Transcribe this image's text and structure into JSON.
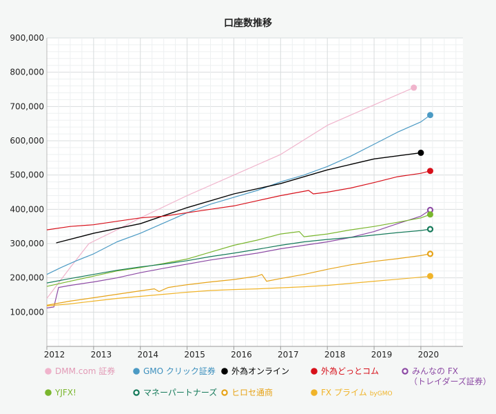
{
  "chart_data": {
    "type": "line",
    "title": "口座数推移",
    "xlabel": "",
    "ylabel": "",
    "xlim": [
      2012,
      2020.9
    ],
    "ylim": [
      0,
      900000
    ],
    "x_ticks": [
      2012,
      2013,
      2014,
      2015,
      2016,
      2017,
      2018,
      2019,
      2020
    ],
    "x_tick_labels": [
      "2012",
      "2013",
      "2014",
      "2015",
      "2016",
      "2017",
      "2018",
      "2019",
      "2020"
    ],
    "y_ticks": [
      100000,
      200000,
      300000,
      400000,
      500000,
      600000,
      700000,
      800000,
      900000
    ],
    "y_tick_labels": [
      "100,000",
      "200,000",
      "300,000",
      "400,000",
      "500,000",
      "600,000",
      "700,000",
      "800,000",
      "900,000"
    ],
    "grid": true,
    "legend_position": "bottom",
    "series": [
      {
        "name": "DMM.com 証券",
        "color": "#f0b4cc",
        "marker": "filled",
        "points": [
          [
            2012.0,
            140000
          ],
          [
            2012.5,
            230000
          ],
          [
            2012.9,
            300000
          ],
          [
            2013.5,
            340000
          ],
          [
            2014.0,
            375000
          ],
          [
            2015.0,
            440000
          ],
          [
            2016.0,
            500000
          ],
          [
            2017.0,
            560000
          ],
          [
            2018.0,
            645000
          ],
          [
            2019.0,
            705000
          ],
          [
            2019.85,
            755000
          ]
        ]
      },
      {
        "name": "GMO クリック証券",
        "color": "#4b9ac4",
        "marker": "filled",
        "points": [
          [
            2012.0,
            210000
          ],
          [
            2012.3,
            230000
          ],
          [
            2012.6,
            248000
          ],
          [
            2013.0,
            270000
          ],
          [
            2013.5,
            305000
          ],
          [
            2014.0,
            330000
          ],
          [
            2014.5,
            360000
          ],
          [
            2015.0,
            390000
          ],
          [
            2015.5,
            415000
          ],
          [
            2016.0,
            435000
          ],
          [
            2016.5,
            455000
          ],
          [
            2017.0,
            480000
          ],
          [
            2017.5,
            500000
          ],
          [
            2018.0,
            525000
          ],
          [
            2018.5,
            555000
          ],
          [
            2019.0,
            590000
          ],
          [
            2019.5,
            625000
          ],
          [
            2020.0,
            655000
          ],
          [
            2020.2,
            675000
          ]
        ]
      },
      {
        "name": "外為オンライン",
        "color": "#000000",
        "marker": "filled",
        "points": [
          [
            2012.2,
            302000
          ],
          [
            2013.0,
            330000
          ],
          [
            2014.0,
            358000
          ],
          [
            2015.0,
            405000
          ],
          [
            2016.0,
            445000
          ],
          [
            2017.0,
            475000
          ],
          [
            2018.0,
            515000
          ],
          [
            2019.0,
            547000
          ],
          [
            2020.0,
            565000
          ]
        ]
      },
      {
        "name": "外為どっとコム",
        "color": "#d7101a",
        "marker": "filled",
        "points": [
          [
            2012.0,
            340000
          ],
          [
            2012.5,
            350000
          ],
          [
            2013.0,
            355000
          ],
          [
            2013.5,
            365000
          ],
          [
            2014.0,
            375000
          ],
          [
            2014.5,
            380000
          ],
          [
            2015.0,
            390000
          ],
          [
            2015.5,
            400000
          ],
          [
            2016.0,
            410000
          ],
          [
            2016.5,
            425000
          ],
          [
            2017.0,
            440000
          ],
          [
            2017.6,
            455000
          ],
          [
            2017.7,
            445000
          ],
          [
            2018.0,
            450000
          ],
          [
            2018.5,
            462000
          ],
          [
            2019.0,
            478000
          ],
          [
            2019.5,
            495000
          ],
          [
            2020.0,
            505000
          ],
          [
            2020.2,
            512000
          ]
        ]
      },
      {
        "name": "みんなの FX (トレイダーズ証券)",
        "color": "#8c4aa4",
        "marker": "ring",
        "points": [
          [
            2012.0,
            112000
          ],
          [
            2012.15,
            115000
          ],
          [
            2012.25,
            172000
          ],
          [
            2012.5,
            178000
          ],
          [
            2013.0,
            188000
          ],
          [
            2013.5,
            200000
          ],
          [
            2014.0,
            215000
          ],
          [
            2014.5,
            228000
          ],
          [
            2015.0,
            240000
          ],
          [
            2015.5,
            252000
          ],
          [
            2016.0,
            262000
          ],
          [
            2016.5,
            272000
          ],
          [
            2017.0,
            285000
          ],
          [
            2017.5,
            295000
          ],
          [
            2018.0,
            305000
          ],
          [
            2018.5,
            318000
          ],
          [
            2019.0,
            335000
          ],
          [
            2019.5,
            358000
          ],
          [
            2020.0,
            380000
          ],
          [
            2020.2,
            398000
          ]
        ]
      },
      {
        "name": "YJFX!",
        "color": "#7ab62e",
        "marker": "filled",
        "points": [
          [
            2012.0,
            175000
          ],
          [
            2012.5,
            190000
          ],
          [
            2013.0,
            205000
          ],
          [
            2013.5,
            220000
          ],
          [
            2014.0,
            230000
          ],
          [
            2014.5,
            242000
          ],
          [
            2015.0,
            255000
          ],
          [
            2015.5,
            275000
          ],
          [
            2016.0,
            295000
          ],
          [
            2016.5,
            310000
          ],
          [
            2017.0,
            328000
          ],
          [
            2017.4,
            335000
          ],
          [
            2017.5,
            320000
          ],
          [
            2018.0,
            328000
          ],
          [
            2018.5,
            340000
          ],
          [
            2019.0,
            350000
          ],
          [
            2019.5,
            362000
          ],
          [
            2020.0,
            375000
          ],
          [
            2020.2,
            385000
          ]
        ]
      },
      {
        "name": "マネーパートナーズ",
        "color": "#157a5a",
        "marker": "ring",
        "points": [
          [
            2012.0,
            185000
          ],
          [
            2012.5,
            198000
          ],
          [
            2013.0,
            210000
          ],
          [
            2013.5,
            222000
          ],
          [
            2014.0,
            232000
          ],
          [
            2014.5,
            240000
          ],
          [
            2015.0,
            250000
          ],
          [
            2015.5,
            262000
          ],
          [
            2016.0,
            272000
          ],
          [
            2016.5,
            283000
          ],
          [
            2017.0,
            295000
          ],
          [
            2017.5,
            305000
          ],
          [
            2018.0,
            312000
          ],
          [
            2018.5,
            318000
          ],
          [
            2019.0,
            325000
          ],
          [
            2019.5,
            332000
          ],
          [
            2020.0,
            338000
          ],
          [
            2020.2,
            342000
          ]
        ]
      },
      {
        "name": "ヒロセ通商",
        "color": "#e6a318",
        "marker": "ring",
        "points": [
          [
            2012.0,
            120000
          ],
          [
            2012.5,
            132000
          ],
          [
            2013.0,
            142000
          ],
          [
            2013.5,
            152000
          ],
          [
            2014.0,
            162000
          ],
          [
            2014.3,
            168000
          ],
          [
            2014.4,
            160000
          ],
          [
            2014.6,
            172000
          ],
          [
            2015.0,
            180000
          ],
          [
            2015.5,
            188000
          ],
          [
            2016.0,
            195000
          ],
          [
            2016.5,
            205000
          ],
          [
            2016.6,
            210000
          ],
          [
            2016.7,
            190000
          ],
          [
            2017.0,
            198000
          ],
          [
            2017.5,
            210000
          ],
          [
            2018.0,
            225000
          ],
          [
            2018.5,
            238000
          ],
          [
            2019.0,
            248000
          ],
          [
            2019.5,
            256000
          ],
          [
            2020.0,
            265000
          ],
          [
            2020.2,
            270000
          ]
        ]
      },
      {
        "name": "FX プライム byGMO",
        "color": "#f0b42a",
        "marker": "filled",
        "points": [
          [
            2012.0,
            118000
          ],
          [
            2012.5,
            124000
          ],
          [
            2013.0,
            132000
          ],
          [
            2013.5,
            140000
          ],
          [
            2014.0,
            146000
          ],
          [
            2014.5,
            152000
          ],
          [
            2015.0,
            158000
          ],
          [
            2015.5,
            163000
          ],
          [
            2016.0,
            166000
          ],
          [
            2016.5,
            168000
          ],
          [
            2017.0,
            171000
          ],
          [
            2017.5,
            174000
          ],
          [
            2018.0,
            178000
          ],
          [
            2018.5,
            184000
          ],
          [
            2019.0,
            190000
          ],
          [
            2019.5,
            196000
          ],
          [
            2020.0,
            202000
          ],
          [
            2020.2,
            205000
          ]
        ]
      }
    ]
  },
  "legend": [
    {
      "label": "DMM.com 証券",
      "color": "#f0b4cc",
      "marker": "filled",
      "text_color": "#e29ab6"
    },
    {
      "label": "GMO クリック証券",
      "color": "#4b9ac4",
      "marker": "filled",
      "text_color": "#3c8fbd"
    },
    {
      "label": "外為オンライン",
      "color": "#000000",
      "marker": "filled",
      "text_color": "#000000"
    },
    {
      "label": "外為どっとコム",
      "color": "#d7101a",
      "marker": "filled",
      "text_color": "#d7101a"
    },
    {
      "label": "みんなの FX",
      "sublabel": "（トレイダーズ証券）",
      "color": "#8c4aa4",
      "marker": "ring",
      "text_color": "#8c4aa4"
    },
    {
      "label": "YJFX!",
      "color": "#7ab62e",
      "marker": "filled",
      "text_color": "#7ab62e"
    },
    {
      "label": "マネーパートナーズ",
      "color": "#157a5a",
      "marker": "ring",
      "text_color": "#157a5a"
    },
    {
      "label": "ヒロセ通商",
      "color": "#e6a318",
      "marker": "ring",
      "text_color": "#e6a318"
    },
    {
      "label": "FX プライム",
      "small": "byGMO",
      "color": "#f0b42a",
      "marker": "filled",
      "text_color": "#f0b42a"
    }
  ]
}
